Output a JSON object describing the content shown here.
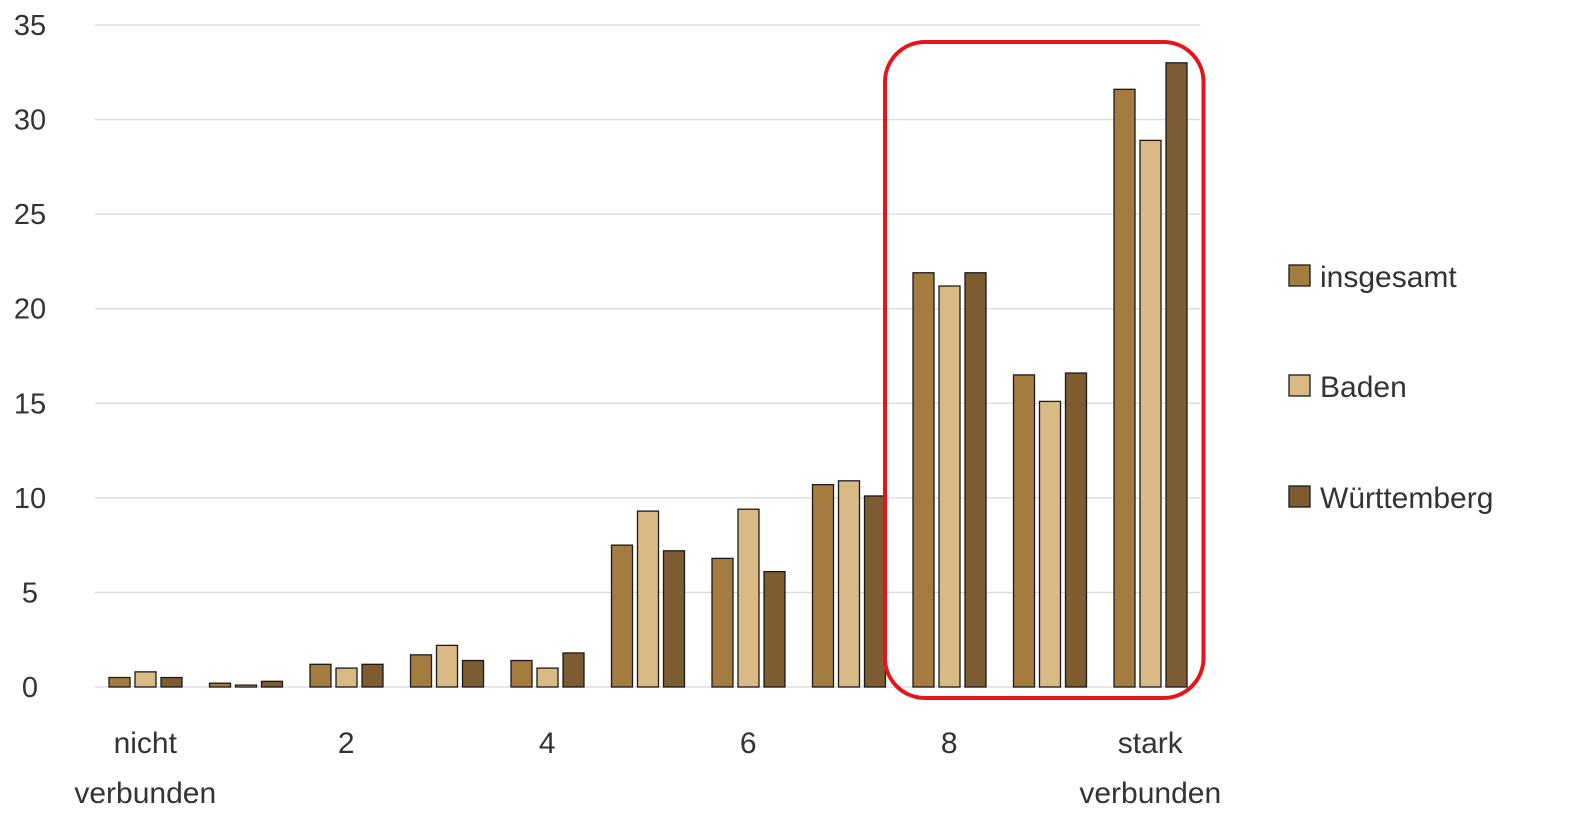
{
  "chart_data": {
    "type": "bar",
    "categories": [
      "nicht verbunden",
      "",
      "2",
      "",
      "4",
      "",
      "6",
      "",
      "8",
      "",
      "stark verbunden"
    ],
    "x_tick_labels": [
      {
        "index": 0,
        "lines": [
          "nicht",
          "verbunden"
        ]
      },
      {
        "index": 2,
        "lines": [
          "2"
        ]
      },
      {
        "index": 4,
        "lines": [
          "4"
        ]
      },
      {
        "index": 6,
        "lines": [
          "6"
        ]
      },
      {
        "index": 8,
        "lines": [
          "8"
        ]
      },
      {
        "index": 10,
        "lines": [
          "stark",
          "verbunden"
        ]
      }
    ],
    "series": [
      {
        "name": "insgesamt",
        "color": "#A57C3F",
        "values": [
          0.5,
          0.2,
          1.2,
          1.7,
          1.4,
          7.5,
          6.8,
          10.7,
          21.9,
          16.5,
          31.6
        ]
      },
      {
        "name": "Baden",
        "color": "#D9BA85",
        "values": [
          0.8,
          0.1,
          1.0,
          2.2,
          1.0,
          9.3,
          9.4,
          10.9,
          21.2,
          15.1,
          28.9
        ]
      },
      {
        "name": "Württemberg",
        "color": "#7D5C32",
        "values": [
          0.5,
          0.3,
          1.2,
          1.4,
          1.8,
          7.2,
          6.1,
          10.1,
          21.9,
          16.6,
          33.0
        ]
      }
    ],
    "ylim": [
      0,
      35
    ],
    "yticks": [
      "0",
      "5",
      "10",
      "15",
      "20",
      "25",
      "30",
      "35"
    ],
    "grid": true,
    "legend_position": "right",
    "highlight": {
      "from_index": 8,
      "to_index": 10,
      "color": "#E8141C"
    }
  }
}
